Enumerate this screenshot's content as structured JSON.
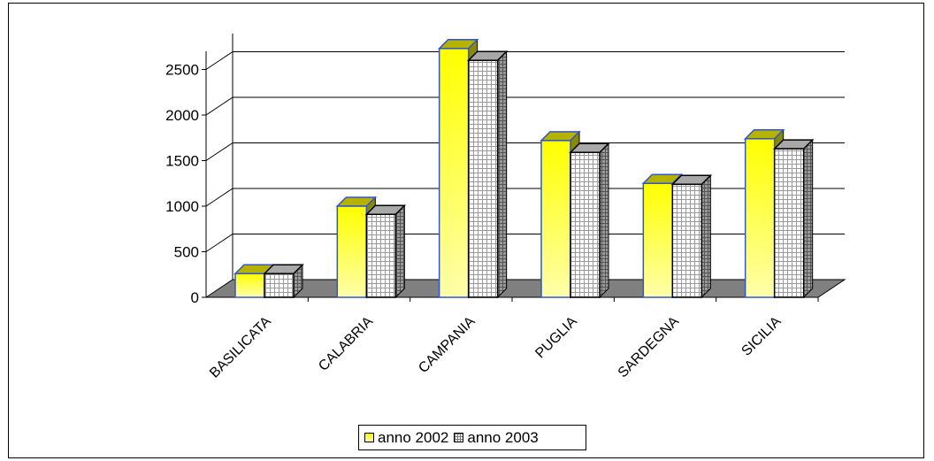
{
  "chart_data": {
    "type": "bar",
    "categories": [
      "BASILICATA",
      "CALABRIA",
      "CAMPANIA",
      "PUGLIA",
      "SARDEGNA",
      "SICILIA"
    ],
    "series": [
      {
        "name": "anno 2002",
        "values": [
          260,
          1000,
          2730,
          1720,
          1250,
          1740
        ]
      },
      {
        "name": "anno 2003",
        "values": [
          260,
          910,
          2600,
          1590,
          1240,
          1630
        ]
      }
    ],
    "y_ticks": [
      "0",
      "500",
      "1000",
      "1500",
      "2000",
      "2500"
    ],
    "ylim": [
      0,
      2700
    ],
    "grid": true,
    "legend_position": "bottom",
    "style": "3d-clustered-column",
    "colors": {
      "series_2002_top": "#ffff00",
      "series_2002_bottom": "#ffffaa",
      "series_2003_face": "#ffffff",
      "series_2003_pattern": "#888888",
      "floor": "#808080",
      "bar_outline_2002": "#3355cc"
    }
  }
}
